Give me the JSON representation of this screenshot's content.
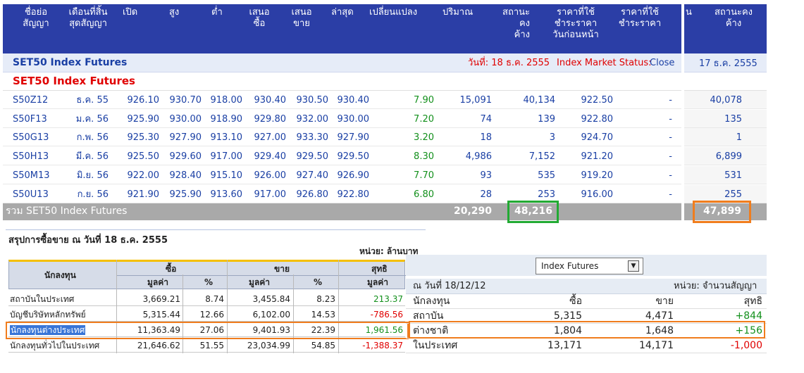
{
  "futures": {
    "headers": [
      "ชื่อย่อ\nสัญญา",
      "เดือนที่สิ้น\nสุดสัญญา",
      "เปิด",
      "สูง",
      "ต่ำ",
      "เสนอ\nซื้อ",
      "เสนอ\nขาย",
      "ล่าสุด",
      "เปลี่ยนแปลง",
      "ปริมาณ",
      "สถานะคง\nค้าง",
      "ราคาที่ใช้\nชำระราคา\nวันก่อนหน้า",
      "ราคาที่ใช้\nชำระราคา"
    ],
    "right_headers": [
      "น",
      "สถานะคง\nค้าง"
    ],
    "section_title": "SET50 Index Futures",
    "date_label": "วันที่: 18 ธ.ค. 2555",
    "market_status_label": "Index Market Status:",
    "market_status_value": "Close",
    "right_date": "17 ธ.ค. 2555",
    "group_title": "SET50 Index Futures",
    "rows": [
      {
        "symbol": "S50Z12",
        "month": "ธ.ค. 55",
        "open": "926.10",
        "high": "930.70",
        "low": "918.00",
        "bid": "930.40",
        "offer": "930.50",
        "last": "930.40",
        "change": "7.90",
        "volume": "15,091",
        "oi": "40,134",
        "prev_settle": "922.50",
        "settle": "-",
        "right_oi": "40,078"
      },
      {
        "symbol": "S50F13",
        "month": "ม.ค. 56",
        "open": "925.90",
        "high": "930.00",
        "low": "918.90",
        "bid": "929.80",
        "offer": "932.00",
        "last": "930.00",
        "change": "7.20",
        "volume": "74",
        "oi": "139",
        "prev_settle": "922.80",
        "settle": "-",
        "right_oi": "135"
      },
      {
        "symbol": "S50G13",
        "month": "ก.พ. 56",
        "open": "925.30",
        "high": "927.90",
        "low": "913.10",
        "bid": "927.00",
        "offer": "933.30",
        "last": "927.90",
        "change": "3.20",
        "volume": "18",
        "oi": "3",
        "prev_settle": "924.70",
        "settle": "-",
        "right_oi": "1"
      },
      {
        "symbol": "S50H13",
        "month": "มี.ค. 56",
        "open": "925.50",
        "high": "929.60",
        "low": "917.00",
        "bid": "929.40",
        "offer": "929.50",
        "last": "929.50",
        "change": "8.30",
        "volume": "4,986",
        "oi": "7,152",
        "prev_settle": "921.20",
        "settle": "-",
        "right_oi": "6,899"
      },
      {
        "symbol": "S50M13",
        "month": "มิ.ย. 56",
        "open": "922.00",
        "high": "928.40",
        "low": "915.10",
        "bid": "926.00",
        "offer": "927.40",
        "last": "926.90",
        "change": "7.70",
        "volume": "93",
        "oi": "535",
        "prev_settle": "919.20",
        "settle": "-",
        "right_oi": "531"
      },
      {
        "symbol": "S50U13",
        "month": "ก.ย. 56",
        "open": "921.90",
        "high": "925.90",
        "low": "913.60",
        "bid": "917.00",
        "offer": "926.80",
        "last": "922.80",
        "change": "6.80",
        "volume": "28",
        "oi": "253",
        "prev_settle": "916.00",
        "settle": "-",
        "right_oi": "255"
      }
    ],
    "total": {
      "label": "รวม SET50 Index Futures",
      "volume": "20,290",
      "oi": "48,216",
      "right_oi": "47,899"
    }
  },
  "summary": {
    "title": "สรุปการซื้อขาย ณ วันที่ 18 ธ.ค. 2555",
    "unit": "หน่วย: ล้านบาท",
    "col_investor": "นักลงทุน",
    "col_buy": "ซื้อ",
    "col_sell": "ขาย",
    "col_net": "สุทธิ",
    "sub_value": "มูลค่า",
    "sub_pct": "%",
    "rows": [
      {
        "investor": "สถาบันในประเทศ",
        "buy_value": "3,669.21",
        "buy_pct": "8.74",
        "sell_value": "3,455.84",
        "sell_pct": "8.23",
        "net": "213.37",
        "net_color": "green"
      },
      {
        "investor": "บัญชีบริษัทหลักทรัพย์",
        "buy_value": "5,315.44",
        "buy_pct": "12.66",
        "sell_value": "6,102.00",
        "sell_pct": "14.53",
        "net": "-786.56",
        "net_color": "red"
      },
      {
        "investor": "นักลงทุนต่างประเทศ",
        "buy_value": "11,363.49",
        "buy_pct": "27.06",
        "sell_value": "9,401.93",
        "sell_pct": "22.39",
        "net": "1,961.56",
        "net_color": "green"
      },
      {
        "investor": "นักลงทุนทั่วไปในประเทศ",
        "buy_value": "21,646.62",
        "buy_pct": "51.55",
        "sell_value": "23,034.99",
        "sell_pct": "54.85",
        "net": "-1,388.37",
        "net_color": "red"
      }
    ]
  },
  "futures_summary": {
    "select_value": "Index Futures",
    "date_label": "ณ วันที่ 18/12/12",
    "unit": "หน่วย: จำนวนสัญญา",
    "col_investor": "นักลงทุน",
    "col_buy": "ซื้อ",
    "col_sell": "ขาย",
    "col_net": "สุทธิ",
    "rows": [
      {
        "investor": "สถาบัน",
        "buy": "5,315",
        "sell": "4,471",
        "net": "+844",
        "net_color": "green"
      },
      {
        "investor": "ต่างชาติ",
        "buy": "1,804",
        "sell": "1,648",
        "net": "+156",
        "net_color": "green"
      },
      {
        "investor": "ในประเทศ",
        "buy": "13,171",
        "sell": "14,171",
        "net": "-1,000",
        "net_color": "red"
      }
    ]
  },
  "colors": {
    "header_bg": "#2b3ea6",
    "link_blue": "#1a3fa4",
    "positive": "#13901c",
    "negative": "#e00000",
    "highlight_green": "#22aa33",
    "highlight_orange": "#f07d1e"
  }
}
